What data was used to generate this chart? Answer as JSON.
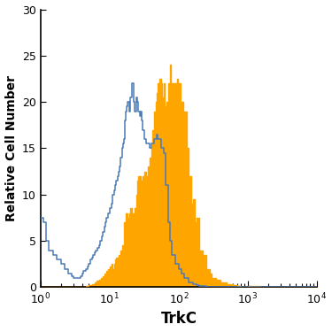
{
  "title": "",
  "xlabel": "TrkC",
  "ylabel": "Relative Cell Number",
  "xlim": [
    1,
    10000
  ],
  "ylim": [
    0,
    30
  ],
  "yticks": [
    0,
    5,
    10,
    15,
    20,
    25,
    30
  ],
  "background_color": "#ffffff",
  "blue_color": "#4a7ab5",
  "orange_color": "#FFA500",
  "xlabel_fontsize": 12,
  "ylabel_fontsize": 10,
  "tick_fontsize": 9,
  "blue_x": [
    1.0,
    1.1,
    1.2,
    1.3,
    1.5,
    1.7,
    2.0,
    2.2,
    2.5,
    2.8,
    3.0,
    3.2,
    3.5,
    3.8,
    4.0,
    4.2,
    4.5,
    4.8,
    5.0,
    5.2,
    5.5,
    5.8,
    6.0,
    6.3,
    6.6,
    7.0,
    7.3,
    7.7,
    8.0,
    8.3,
    8.7,
    9.0,
    9.5,
    10.0,
    10.5,
    11.0,
    11.5,
    12.0,
    12.5,
    13.0,
    13.5,
    14.0,
    14.5,
    15.0,
    15.5,
    16.0,
    16.5,
    17.0,
    17.5,
    18.0,
    18.5,
    19.0,
    19.5,
    20.0,
    21.0,
    22.0,
    23.0,
    24.0,
    25.0,
    26.0,
    27.0,
    28.0,
    29.0,
    30.0,
    32.0,
    34.0,
    36.0,
    38.0,
    40.0,
    42.0,
    44.0,
    46.0,
    48.0,
    50.0,
    55.0,
    60.0,
    65.0,
    70.0,
    75.0,
    80.0,
    90.0,
    100.0,
    110.0,
    120.0,
    140.0,
    160.0,
    180.0,
    200.0,
    250.0,
    300.0,
    400.0,
    500.0,
    700.0,
    1000.0,
    2000.0,
    5000.0,
    10000.0
  ],
  "blue_y": [
    7.5,
    7.0,
    5.0,
    4.0,
    3.5,
    3.0,
    2.5,
    2.0,
    1.5,
    1.2,
    1.0,
    1.0,
    1.0,
    1.2,
    1.5,
    1.8,
    2.0,
    2.2,
    2.5,
    3.0,
    3.2,
    3.5,
    3.8,
    4.0,
    4.2,
    4.5,
    5.0,
    5.5,
    6.0,
    6.5,
    7.0,
    7.5,
    8.0,
    8.5,
    9.0,
    10.0,
    10.5,
    11.0,
    11.5,
    12.0,
    12.5,
    13.0,
    14.0,
    15.0,
    15.5,
    16.0,
    18.0,
    19.0,
    19.5,
    20.0,
    20.0,
    19.5,
    19.0,
    20.5,
    22.0,
    20.0,
    19.0,
    20.5,
    20.0,
    19.0,
    18.5,
    19.0,
    18.0,
    17.0,
    16.0,
    15.5,
    15.5,
    15.0,
    15.5,
    15.5,
    16.0,
    16.0,
    16.5,
    16.0,
    15.0,
    14.5,
    11.0,
    7.0,
    5.0,
    3.5,
    2.5,
    2.0,
    1.5,
    1.0,
    0.5,
    0.3,
    0.2,
    0.1,
    0.05,
    0.02,
    0.01,
    0.005,
    0.002,
    0.0,
    0.0,
    0.0,
    0.0
  ],
  "orange_x": [
    1.0,
    1.5,
    2.0,
    2.5,
    3.0,
    3.5,
    4.0,
    4.5,
    5.0,
    5.5,
    6.0,
    6.5,
    7.0,
    7.5,
    8.0,
    8.5,
    9.0,
    9.5,
    10.0,
    10.5,
    11.0,
    11.5,
    12.0,
    12.5,
    13.0,
    13.5,
    14.0,
    14.5,
    15.0,
    16.0,
    17.0,
    18.0,
    19.0,
    20.0,
    21.0,
    22.0,
    23.0,
    24.0,
    25.0,
    26.0,
    27.0,
    28.0,
    30.0,
    32.0,
    34.0,
    36.0,
    38.0,
    40.0,
    42.0,
    44.0,
    46.0,
    48.0,
    50.0,
    52.0,
    55.0,
    58.0,
    60.0,
    63.0,
    66.0,
    70.0,
    74.0,
    78.0,
    82.0,
    85.0,
    88.0,
    90.0,
    93.0,
    95.0,
    98.0,
    100.0,
    105.0,
    110.0,
    115.0,
    120.0,
    130.0,
    140.0,
    150.0,
    160.0,
    170.0,
    180.0,
    200.0,
    220.0,
    250.0,
    280.0,
    300.0,
    350.0,
    400.0,
    500.0,
    600.0,
    700.0,
    800.0,
    1000.0,
    1500.0,
    2000.0,
    3000.0,
    5000.0,
    10000.0
  ],
  "orange_y": [
    0.0,
    0.0,
    0.0,
    0.0,
    0.0,
    0.0,
    0.0,
    0.1,
    0.2,
    0.3,
    0.5,
    0.7,
    0.8,
    1.0,
    1.2,
    1.5,
    1.8,
    2.0,
    2.2,
    2.5,
    2.0,
    2.5,
    3.0,
    3.2,
    3.0,
    3.5,
    3.0,
    4.0,
    4.5,
    7.0,
    8.0,
    7.5,
    8.0,
    8.5,
    8.0,
    7.5,
    8.5,
    10.0,
    11.5,
    12.0,
    12.0,
    11.5,
    12.0,
    12.5,
    12.0,
    13.0,
    14.0,
    15.0,
    17.0,
    19.0,
    20.0,
    21.0,
    22.0,
    22.5,
    22.0,
    20.5,
    22.0,
    19.5,
    20.0,
    22.0,
    24.0,
    22.0,
    22.0,
    22.0,
    21.0,
    22.0,
    20.5,
    22.5,
    21.0,
    22.0,
    20.0,
    20.0,
    18.5,
    19.0,
    15.0,
    12.0,
    9.0,
    9.5,
    7.0,
    7.5,
    4.0,
    3.5,
    2.0,
    1.5,
    1.0,
    0.8,
    0.5,
    0.3,
    0.2,
    0.1,
    0.05,
    0.1,
    0.05,
    0.02,
    0.01,
    0.0,
    0.0
  ]
}
